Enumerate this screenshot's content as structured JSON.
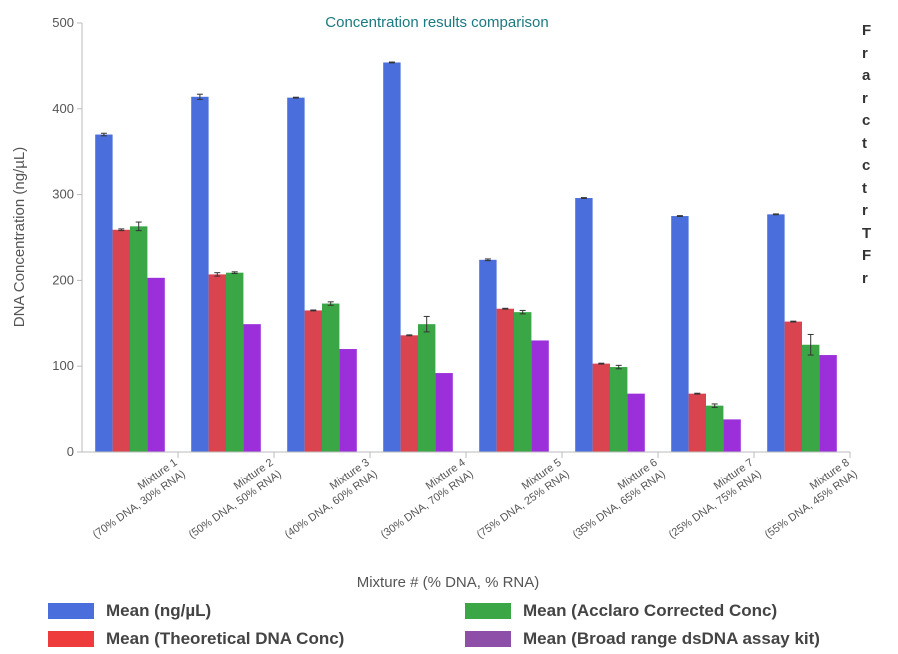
{
  "chart_data": {
    "type": "bar",
    "title": "Concentration results comparison",
    "xlabel": "Mixture # (% DNA, % RNA)",
    "ylabel": "DNA Concentration (ng/µL)",
    "ylim": [
      0,
      500
    ],
    "yticks": [
      0,
      100,
      200,
      300,
      400,
      500
    ],
    "grid": false,
    "legend_position": "bottom",
    "categories": [
      "Mixture 1 (70% DNA, 30% RNA)",
      "Mixture 2 (50% DNA, 50% RNA)",
      "Mixture 3 (40% DNA, 60% RNA)",
      "Mixture 4 (30% DNA, 70% RNA)",
      "Mixture 5 (75% DNA, 25% RNA)",
      "Mixture 6 (35% DNA, 65% RNA)",
      "Mixture 7 (25% DNA, 75% RNA)",
      "Mixture 8 (55% DNA, 45% RNA)"
    ],
    "category_lines": [
      [
        "Mixture 1",
        "(70% DNA, 30% RNA)"
      ],
      [
        "Mixture 2",
        "(50% DNA, 50% RNA)"
      ],
      [
        "Mixture 3",
        "(40% DNA, 60% RNA)"
      ],
      [
        "Mixture 4",
        "(30% DNA, 70% RNA)"
      ],
      [
        "Mixture 5",
        "(75% DNA, 25% RNA)"
      ],
      [
        "Mixture 6",
        "(35% DNA, 65% RNA)"
      ],
      [
        "Mixture 7",
        "(25% DNA, 75% RNA)"
      ],
      [
        "Mixture 8",
        "(55% DNA, 45% RNA)"
      ]
    ],
    "series": [
      {
        "name": "Mean (ng/µL)",
        "color": "#4a6fdc",
        "values": [
          370,
          414,
          413,
          454,
          224,
          296,
          275,
          277
        ],
        "errors": [
          1.5,
          3,
          0.5,
          0.5,
          1,
          0.5,
          0.5,
          0.5
        ]
      },
      {
        "name": "Mean (Theoretical DNA Conc)",
        "color": "#d9444f",
        "values": [
          259,
          207,
          165,
          136,
          167,
          103,
          68,
          152
        ],
        "errors": [
          1,
          2,
          0.5,
          0.5,
          0.5,
          0.5,
          0.5,
          0.5
        ]
      },
      {
        "name": "Mean (Acclaro Corrected Conc)",
        "color": "#3aa645",
        "values": [
          263,
          209,
          173,
          149,
          163,
          99,
          54,
          125
        ],
        "errors": [
          5,
          1,
          2,
          9,
          2,
          2,
          2,
          12
        ]
      },
      {
        "name": "Mean (Broad range dsDNA assay kit)",
        "color": "#9b2fd9",
        "values": [
          203,
          149,
          120,
          92,
          130,
          68,
          38,
          113
        ],
        "errors": [
          0,
          0,
          0,
          0,
          0,
          0,
          0,
          0
        ]
      }
    ]
  },
  "legend": {
    "items": [
      {
        "label": "Mean (ng/µL)",
        "color": "#4a6fdc"
      },
      {
        "label": "Mean (Acclaro Corrected Conc)",
        "color": "#3aa645"
      },
      {
        "label": "Mean (Theoretical DNA Conc)",
        "color": "#ee3b3b"
      },
      {
        "label": "Mean (Broad range dsDNA assay kit)",
        "color": "#8e4fa8"
      }
    ]
  },
  "side_text": {
    "lines": [
      "F",
      "r",
      "a",
      "r",
      "c",
      "t",
      "c",
      "t",
      "r",
      "T",
      "F",
      "r"
    ]
  }
}
